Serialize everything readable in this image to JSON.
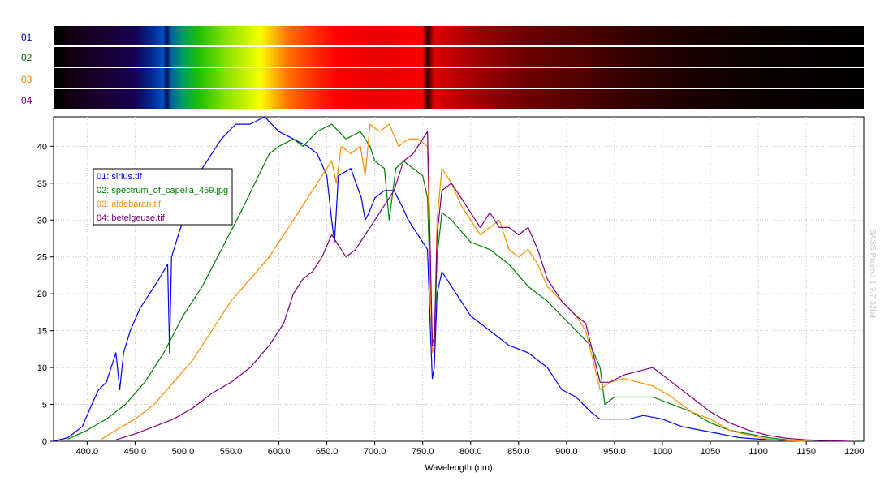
{
  "strips": [
    {
      "id": "01",
      "color": "#0000cc"
    },
    {
      "id": "02",
      "color": "#006600"
    },
    {
      "id": "03",
      "color": "#ff8000"
    },
    {
      "id": "04",
      "color": "#800080"
    }
  ],
  "watermark": "BASS Project 1.9.7 32bit",
  "chart_data": {
    "type": "line",
    "xlabel": "Wavelength (nm)",
    "ylabel": "",
    "xlim": [
      365,
      1210
    ],
    "ylim": [
      0,
      44
    ],
    "x_ticks": [
      400,
      450,
      500,
      550,
      600,
      650,
      700,
      750,
      800,
      850,
      900,
      950,
      1000,
      1050,
      1100,
      1150,
      1200
    ],
    "x_tick_labels": [
      "400.0",
      "450.0",
      "500.0",
      "550.0",
      "600.0",
      "650.0",
      "700.0",
      "750.0",
      "800.0",
      "850.0",
      "900.0",
      "950.0",
      "1000",
      "1050",
      "1100",
      "1150",
      "1200"
    ],
    "y_ticks": [
      0,
      5,
      10,
      15,
      20,
      25,
      30,
      35,
      40
    ],
    "y_tick_labels": [
      "0",
      "5",
      "10",
      "15",
      "20",
      "25",
      "30",
      "35",
      "40"
    ],
    "grid": true,
    "legend": "upper-left",
    "series": [
      {
        "name": "01: sirius.tif",
        "color": "#0000ff",
        "points": [
          [
            365,
            0
          ],
          [
            380,
            0.5
          ],
          [
            395,
            2
          ],
          [
            405,
            5
          ],
          [
            412,
            7
          ],
          [
            420,
            8
          ],
          [
            425,
            10
          ],
          [
            430,
            12
          ],
          [
            434,
            7
          ],
          [
            438,
            12
          ],
          [
            445,
            15
          ],
          [
            455,
            18
          ],
          [
            465,
            20
          ],
          [
            475,
            22
          ],
          [
            484,
            24
          ],
          [
            486,
            12
          ],
          [
            488,
            25
          ],
          [
            500,
            30
          ],
          [
            520,
            37
          ],
          [
            540,
            41
          ],
          [
            555,
            43
          ],
          [
            570,
            43
          ],
          [
            585,
            44
          ],
          [
            600,
            42
          ],
          [
            615,
            41
          ],
          [
            630,
            40
          ],
          [
            640,
            39
          ],
          [
            650,
            36
          ],
          [
            655,
            30
          ],
          [
            658,
            27
          ],
          [
            662,
            36
          ],
          [
            675,
            37
          ],
          [
            686,
            33
          ],
          [
            690,
            30
          ],
          [
            694,
            31
          ],
          [
            700,
            33
          ],
          [
            710,
            34
          ],
          [
            720,
            34
          ],
          [
            728,
            32
          ],
          [
            735,
            30
          ],
          [
            745,
            28
          ],
          [
            755,
            26
          ],
          [
            758,
            15
          ],
          [
            760,
            8.5
          ],
          [
            762,
            10
          ],
          [
            765,
            20
          ],
          [
            770,
            23
          ],
          [
            780,
            21
          ],
          [
            800,
            17
          ],
          [
            820,
            15
          ],
          [
            840,
            13
          ],
          [
            860,
            12
          ],
          [
            880,
            10
          ],
          [
            895,
            7
          ],
          [
            910,
            6
          ],
          [
            925,
            4
          ],
          [
            935,
            3
          ],
          [
            950,
            3
          ],
          [
            965,
            3
          ],
          [
            980,
            3.5
          ],
          [
            1000,
            3
          ],
          [
            1020,
            2
          ],
          [
            1040,
            1.5
          ],
          [
            1060,
            1
          ],
          [
            1080,
            0.5
          ],
          [
            1100,
            0.3
          ],
          [
            1130,
            0.1
          ],
          [
            1150,
            0
          ]
        ]
      },
      {
        "name": "02: spectrum_of_capella_459.jpg",
        "color": "#008000",
        "points": [
          [
            380,
            0.3
          ],
          [
            400,
            1.5
          ],
          [
            420,
            3
          ],
          [
            440,
            5
          ],
          [
            460,
            8
          ],
          [
            480,
            12
          ],
          [
            500,
            17
          ],
          [
            520,
            21
          ],
          [
            540,
            26
          ],
          [
            560,
            31
          ],
          [
            575,
            35
          ],
          [
            590,
            39
          ],
          [
            600,
            40
          ],
          [
            615,
            41
          ],
          [
            625,
            40
          ],
          [
            640,
            42
          ],
          [
            655,
            43
          ],
          [
            670,
            41
          ],
          [
            685,
            42
          ],
          [
            695,
            40
          ],
          [
            700,
            38
          ],
          [
            710,
            37
          ],
          [
            715,
            30
          ],
          [
            722,
            37
          ],
          [
            730,
            38
          ],
          [
            740,
            37
          ],
          [
            750,
            36
          ],
          [
            755,
            33
          ],
          [
            758,
            20
          ],
          [
            760,
            14
          ],
          [
            762,
            13
          ],
          [
            765,
            25
          ],
          [
            770,
            31
          ],
          [
            780,
            30
          ],
          [
            800,
            27
          ],
          [
            820,
            26
          ],
          [
            840,
            24
          ],
          [
            860,
            21
          ],
          [
            880,
            19
          ],
          [
            895,
            17
          ],
          [
            910,
            15
          ],
          [
            925,
            13
          ],
          [
            935,
            10
          ],
          [
            940,
            5
          ],
          [
            950,
            6
          ],
          [
            970,
            6
          ],
          [
            990,
            6
          ],
          [
            1010,
            5
          ],
          [
            1030,
            4
          ],
          [
            1050,
            2.5
          ],
          [
            1070,
            1.5
          ],
          [
            1090,
            1
          ],
          [
            1110,
            0.5
          ],
          [
            1130,
            0.2
          ],
          [
            1150,
            0
          ]
        ]
      },
      {
        "name": "03: aldebaran.tif",
        "color": "#ff8c00",
        "points": [
          [
            415,
            0.3
          ],
          [
            430,
            1.5
          ],
          [
            450,
            3
          ],
          [
            470,
            5
          ],
          [
            490,
            8
          ],
          [
            510,
            11
          ],
          [
            530,
            15
          ],
          [
            550,
            19
          ],
          [
            570,
            22
          ],
          [
            590,
            25
          ],
          [
            610,
            29
          ],
          [
            625,
            32
          ],
          [
            640,
            35
          ],
          [
            650,
            37
          ],
          [
            655,
            38
          ],
          [
            660,
            35
          ],
          [
            665,
            40
          ],
          [
            675,
            39
          ],
          [
            685,
            40
          ],
          [
            690,
            36
          ],
          [
            695,
            43
          ],
          [
            705,
            42
          ],
          [
            715,
            43
          ],
          [
            725,
            40
          ],
          [
            735,
            41
          ],
          [
            745,
            41
          ],
          [
            755,
            40
          ],
          [
            758,
            20
          ],
          [
            760,
            12
          ],
          [
            762,
            13
          ],
          [
            765,
            30
          ],
          [
            770,
            37
          ],
          [
            780,
            35
          ],
          [
            790,
            32
          ],
          [
            800,
            30
          ],
          [
            810,
            28
          ],
          [
            820,
            29
          ],
          [
            830,
            30
          ],
          [
            840,
            26
          ],
          [
            850,
            25
          ],
          [
            860,
            26
          ],
          [
            870,
            24
          ],
          [
            880,
            21
          ],
          [
            895,
            19
          ],
          [
            910,
            17
          ],
          [
            920,
            15
          ],
          [
            935,
            7
          ],
          [
            945,
            8
          ],
          [
            960,
            8.5
          ],
          [
            975,
            8
          ],
          [
            990,
            7.5
          ],
          [
            1010,
            6
          ],
          [
            1030,
            4
          ],
          [
            1050,
            3
          ],
          [
            1070,
            1.5
          ],
          [
            1090,
            0.8
          ],
          [
            1110,
            0.3
          ],
          [
            1130,
            0.1
          ],
          [
            1150,
            0
          ]
        ]
      },
      {
        "name": "04: betelgeuse.tif",
        "color": "#800080",
        "points": [
          [
            430,
            0.2
          ],
          [
            450,
            1
          ],
          [
            470,
            2
          ],
          [
            490,
            3
          ],
          [
            510,
            4.5
          ],
          [
            530,
            6.5
          ],
          [
            550,
            8
          ],
          [
            570,
            10
          ],
          [
            590,
            13
          ],
          [
            605,
            16
          ],
          [
            615,
            20
          ],
          [
            625,
            22
          ],
          [
            635,
            23
          ],
          [
            645,
            25
          ],
          [
            655,
            28
          ],
          [
            660,
            27
          ],
          [
            670,
            25
          ],
          [
            680,
            26
          ],
          [
            690,
            28
          ],
          [
            700,
            30
          ],
          [
            710,
            32
          ],
          [
            720,
            34
          ],
          [
            730,
            38
          ],
          [
            740,
            39
          ],
          [
            750,
            41
          ],
          [
            755,
            42
          ],
          [
            758,
            25
          ],
          [
            760,
            13
          ],
          [
            762,
            13
          ],
          [
            765,
            28
          ],
          [
            770,
            34
          ],
          [
            780,
            35
          ],
          [
            790,
            33
          ],
          [
            800,
            31
          ],
          [
            810,
            29
          ],
          [
            820,
            31
          ],
          [
            830,
            29
          ],
          [
            840,
            29
          ],
          [
            850,
            28
          ],
          [
            860,
            29
          ],
          [
            870,
            26
          ],
          [
            880,
            22
          ],
          [
            895,
            19
          ],
          [
            910,
            17
          ],
          [
            920,
            16
          ],
          [
            935,
            8
          ],
          [
            945,
            8
          ],
          [
            960,
            9
          ],
          [
            975,
            9.5
          ],
          [
            990,
            10
          ],
          [
            1010,
            8
          ],
          [
            1030,
            6
          ],
          [
            1050,
            4
          ],
          [
            1070,
            2.5
          ],
          [
            1090,
            1.5
          ],
          [
            1110,
            0.8
          ],
          [
            1130,
            0.4
          ],
          [
            1150,
            0.2
          ],
          [
            1170,
            0.1
          ],
          [
            1195,
            0
          ]
        ]
      }
    ]
  }
}
